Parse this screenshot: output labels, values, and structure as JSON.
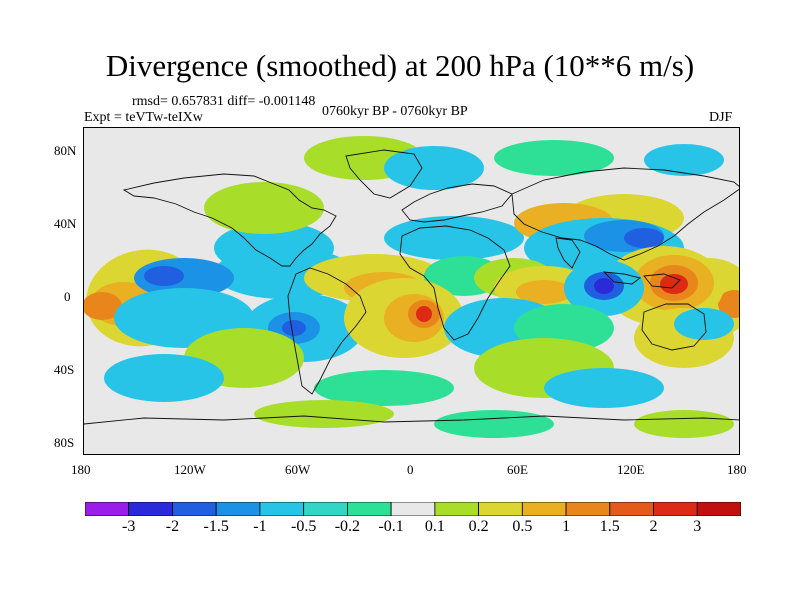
{
  "title": "Divergence (smoothed) at 200 hPa (10**6 m/s)",
  "stats_line": "rmsd= 0.657831 diff= -0.001148",
  "experiment": "Expt = teVTw-teIXw",
  "period": "0760kyr BP - 0760kyr BP",
  "season": "DJF",
  "y_axis_labels": [
    "80N",
    "40N",
    "0",
    "40S",
    "80S"
  ],
  "x_axis_labels": [
    "180",
    "120W",
    "60W",
    "0",
    "60E",
    "120E",
    "180"
  ],
  "colorbar": {
    "labels": [
      "-3",
      "-2",
      "-1.5",
      "-1",
      "-0.5",
      "-0.2",
      "-0.1",
      "0.1",
      "0.2",
      "0.5",
      "1",
      "1.5",
      "2",
      "3"
    ],
    "colors": [
      "#9a1ee8",
      "#2a2ad8",
      "#1f5fe0",
      "#1c92e6",
      "#27c4e8",
      "#33d6c4",
      "#2ee096",
      "#e8e8e8",
      "#a8dd2a",
      "#dcd632",
      "#e8b022",
      "#e8861c",
      "#e45a18",
      "#dc2a14",
      "#c01010"
    ]
  },
  "anomaly_colors": {
    "neutral": "#e8e8e8",
    "weak_neg": "#2ee096",
    "neg": "#27c4e8",
    "neg_mid": "#1c92e6",
    "neg_strong": "#1f5fe0",
    "neg_max": "#2a2ad8",
    "weak_pos": "#a8dd2a",
    "pos": "#dcd632",
    "pos_mid": "#e8b022",
    "pos_strong": "#e8861c",
    "pos_max": "#dc2a14"
  }
}
